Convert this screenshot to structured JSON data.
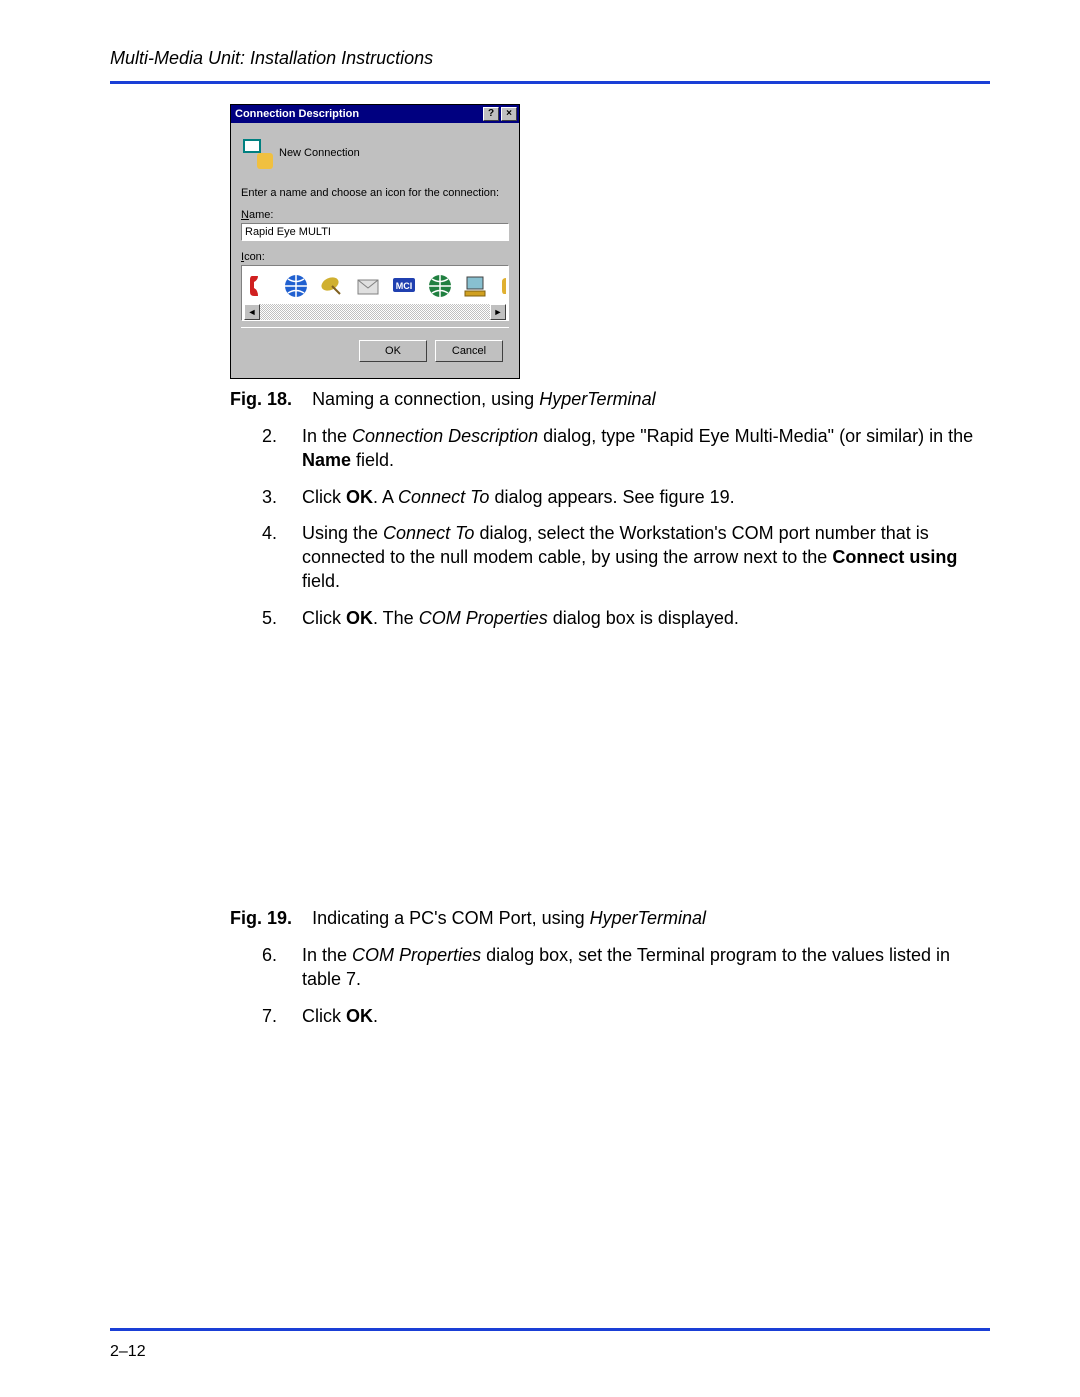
{
  "header": {
    "title": "Multi-Media Unit: Installation Instructions"
  },
  "page_number": "2–12",
  "colors": {
    "rule": "#1a3fd6",
    "titlebar": "#000080",
    "dialog_bg": "#c0c0c0"
  },
  "dialog": {
    "title": "Connection Description",
    "help_btn": "?",
    "close_btn": "×",
    "new_connection_label": "New Connection",
    "prompt": "Enter a name and choose an icon for the connection:",
    "name_label_pre": "N",
    "name_label_post": "ame:",
    "name_value": "Rapid Eye MULTI",
    "icon_label_pre": "I",
    "icon_label_post": "con:",
    "scroll_left": "◄",
    "scroll_right": "►",
    "ok": "OK",
    "cancel": "Cancel",
    "icons": [
      {
        "name": "phone-red-icon",
        "fill": "#d02020",
        "shape": "phone"
      },
      {
        "name": "globe-blue-icon",
        "fill": "#2060d0",
        "shape": "globe"
      },
      {
        "name": "pc-satellite-icon",
        "fill": "#d0b030",
        "shape": "dish"
      },
      {
        "name": "mail-envelope-icon",
        "fill": "#e0e0e0",
        "shape": "envelope"
      },
      {
        "name": "mci-blue-icon",
        "fill": "#2040b0",
        "shape": "mci"
      },
      {
        "name": "globe-green-icon",
        "fill": "#208040",
        "shape": "globe"
      },
      {
        "name": "computer-yellow-icon",
        "fill": "#d0a020",
        "shape": "computer"
      },
      {
        "name": "phone-yellow-icon",
        "fill": "#e0b030",
        "shape": "phone2"
      }
    ]
  },
  "fig18": {
    "label": "Fig. 18.",
    "text_pre": "Naming  a connection, using ",
    "text_i": "HyperTerminal"
  },
  "steps1": [
    {
      "n": "2.",
      "parts": [
        {
          "t": "In the "
        },
        {
          "t": "Connection Description",
          "cls": "i"
        },
        {
          "t": " dialog, type \"Rapid Eye Multi-Media\" (or similar) in the "
        },
        {
          "t": "Name",
          "cls": "b"
        },
        {
          "t": " field."
        }
      ]
    },
    {
      "n": "3.",
      "parts": [
        {
          "t": "Click "
        },
        {
          "t": "OK",
          "cls": "b"
        },
        {
          "t": ". A "
        },
        {
          "t": "Connect To",
          "cls": "i"
        },
        {
          "t": " dialog appears. See figure 19."
        }
      ]
    },
    {
      "n": "4.",
      "parts": [
        {
          "t": "Using the "
        },
        {
          "t": "Connect To",
          "cls": "i"
        },
        {
          "t": " dialog, select the Workstation's COM port number that is connected to the null modem cable, by using the arrow next to the "
        },
        {
          "t": "Connect using",
          "cls": "b"
        },
        {
          "t": " field."
        }
      ]
    },
    {
      "n": "5.",
      "parts": [
        {
          "t": "Click "
        },
        {
          "t": "OK",
          "cls": "b"
        },
        {
          "t": ". The "
        },
        {
          "t": "COM Properties",
          "cls": "i"
        },
        {
          "t": " dialog box is displayed."
        }
      ]
    }
  ],
  "fig19": {
    "label": "Fig. 19.",
    "text_pre": "Indicating a PC's COM Port, using ",
    "text_i": "HyperTerminal"
  },
  "steps2": [
    {
      "n": "6.",
      "parts": [
        {
          "t": "In the "
        },
        {
          "t": "COM Properties",
          "cls": "i"
        },
        {
          "t": " dialog box, set the Terminal program to the values listed in table 7."
        }
      ]
    },
    {
      "n": "7.",
      "parts": [
        {
          "t": "Click "
        },
        {
          "t": "OK",
          "cls": "b"
        },
        {
          "t": "."
        }
      ]
    }
  ]
}
